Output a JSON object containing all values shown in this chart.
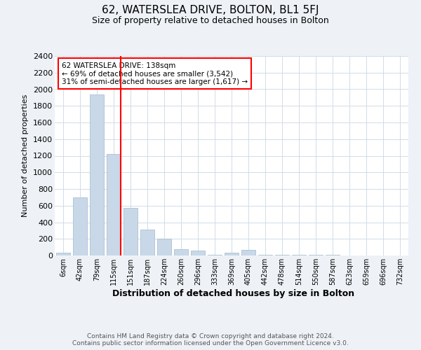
{
  "title": "62, WATERSLEA DRIVE, BOLTON, BL1 5FJ",
  "subtitle": "Size of property relative to detached houses in Bolton",
  "xlabel": "Distribution of detached houses by size in Bolton",
  "ylabel": "Number of detached properties",
  "bar_color": "#c8d8e8",
  "bar_edge_color": "#a0b8cc",
  "gridcolor": "#d0dce8",
  "annotation_line_color": "red",
  "annotation_box_text": "62 WATERSLEA DRIVE: 138sqm\n← 69% of detached houses are smaller (3,542)\n31% of semi-detached houses are larger (1,617) →",
  "footer": "Contains HM Land Registry data © Crown copyright and database right 2024.\nContains public sector information licensed under the Open Government Licence v3.0.",
  "categories": [
    "6sqm",
    "42sqm",
    "79sqm",
    "115sqm",
    "151sqm",
    "187sqm",
    "224sqm",
    "260sqm",
    "296sqm",
    "333sqm",
    "369sqm",
    "405sqm",
    "442sqm",
    "478sqm",
    "514sqm",
    "550sqm",
    "587sqm",
    "623sqm",
    "659sqm",
    "696sqm",
    "732sqm"
  ],
  "values": [
    30,
    700,
    1940,
    1220,
    570,
    310,
    200,
    80,
    60,
    5,
    30,
    70,
    10,
    10,
    5,
    5,
    5,
    2,
    2,
    2,
    2
  ],
  "property_bin_index": 3,
  "ylim": [
    0,
    2400
  ],
  "yticks": [
    0,
    200,
    400,
    600,
    800,
    1000,
    1200,
    1400,
    1600,
    1800,
    2000,
    2200,
    2400
  ],
  "background_color": "#eef2f7",
  "plot_background_color": "#ffffff"
}
